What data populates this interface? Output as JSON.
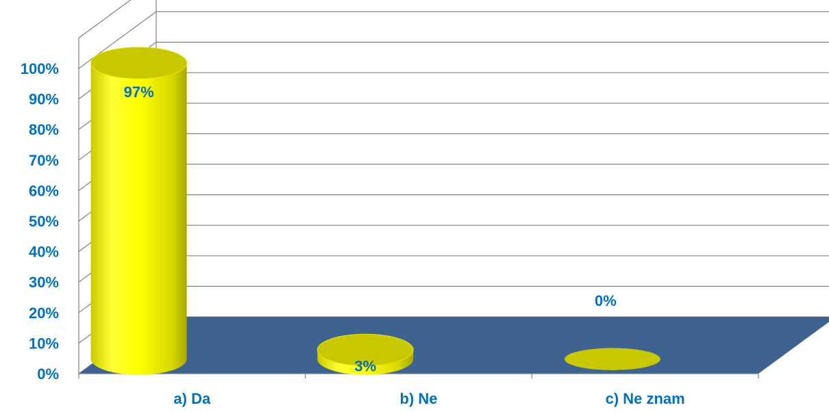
{
  "chart_data": {
    "type": "bar",
    "style": "3d-cylinder",
    "categories": [
      "a) Da",
      "b) Ne",
      "c) Ne znam"
    ],
    "values": [
      97,
      3,
      0
    ],
    "data_labels": [
      "97%",
      "3%",
      "0%"
    ],
    "ylim": [
      0,
      100
    ],
    "y_ticks": [
      "0%",
      "10%",
      "20%",
      "30%",
      "40%",
      "50%",
      "60%",
      "70%",
      "80%",
      "90%",
      "100%"
    ],
    "grid": true,
    "legend": "none",
    "colors": {
      "bar": "#ffff00",
      "bar_shade": "#c8c800",
      "floor": "#3f6391",
      "text": "#0070c0",
      "grid": "#808080"
    }
  }
}
